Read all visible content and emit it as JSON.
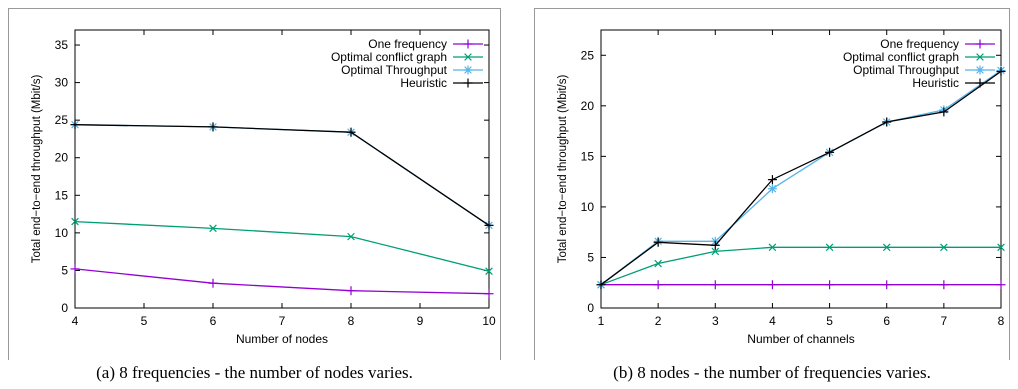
{
  "chart_data": [
    {
      "type": "line",
      "caption": "(a) 8 frequencies - the number of nodes varies.",
      "xlabel": "Number of nodes",
      "ylabel": "Total end−to−end throughput (Mbit/s)",
      "xlim": [
        4,
        10
      ],
      "ylim": [
        0,
        37
      ],
      "xticks": [
        4,
        5,
        6,
        7,
        8,
        9,
        10
      ],
      "yticks": [
        0,
        5,
        10,
        15,
        20,
        25,
        30,
        35
      ],
      "legend_position": "top-right",
      "grid": false,
      "x": [
        4,
        6,
        8,
        10
      ],
      "series": [
        {
          "name": "One frequency",
          "color": "#9400d3",
          "marker": "plus",
          "values": [
            5.2,
            3.3,
            2.3,
            1.9
          ]
        },
        {
          "name": "Optimal conflict graph",
          "color": "#009e73",
          "marker": "x",
          "values": [
            11.5,
            10.6,
            9.5,
            4.9
          ]
        },
        {
          "name": "Optimal Throughput",
          "color": "#56b4e9",
          "marker": "star",
          "values": [
            24.4,
            24.1,
            23.4,
            11.0
          ]
        },
        {
          "name": "Heuristic",
          "color": "#000000",
          "marker": "plus",
          "values": [
            24.4,
            24.1,
            23.4,
            11.0
          ]
        }
      ]
    },
    {
      "type": "line",
      "caption": "(b) 8 nodes - the number of frequencies varies.",
      "xlabel": "Number of channels",
      "ylabel": "Total end−to−end throughput (Mbit/s)",
      "xlim": [
        1,
        8
      ],
      "ylim": [
        0,
        27.5
      ],
      "xticks": [
        1,
        2,
        3,
        4,
        5,
        6,
        7,
        8
      ],
      "yticks": [
        0,
        5,
        10,
        15,
        20,
        25
      ],
      "legend_position": "top-right",
      "grid": false,
      "x": [
        1,
        2,
        3,
        4,
        5,
        6,
        7,
        8
      ],
      "series": [
        {
          "name": "One frequency",
          "color": "#9400d3",
          "marker": "plus",
          "values": [
            2.3,
            2.3,
            2.3,
            2.3,
            2.3,
            2.3,
            2.3,
            2.3
          ]
        },
        {
          "name": "Optimal conflict graph",
          "color": "#009e73",
          "marker": "x",
          "values": [
            2.3,
            4.4,
            5.6,
            6.0,
            6.0,
            6.0,
            6.0,
            6.0
          ]
        },
        {
          "name": "Optimal Throughput",
          "color": "#56b4e9",
          "marker": "star",
          "values": [
            2.3,
            6.6,
            6.6,
            11.8,
            15.4,
            18.4,
            19.6,
            23.5
          ]
        },
        {
          "name": "Heuristic",
          "color": "#000000",
          "marker": "plus",
          "values": [
            2.3,
            6.5,
            6.2,
            12.7,
            15.4,
            18.4,
            19.4,
            23.4
          ]
        }
      ]
    }
  ]
}
